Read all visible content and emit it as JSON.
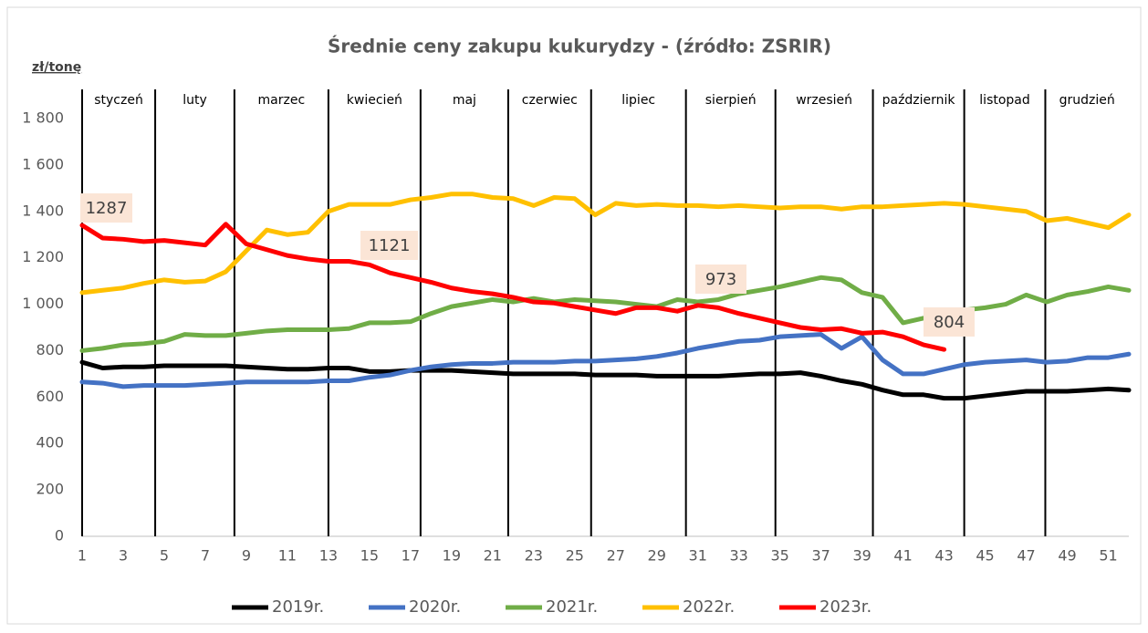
{
  "chart_data": {
    "type": "line",
    "title": "Średnie ceny zakupu kukurydzy - (źródło: ZSRIR)",
    "y_label": "zł/tonę",
    "months": [
      "styczeń",
      "luty",
      "marzec",
      "kwiecień",
      "maj",
      "czerwiec",
      "lipiec",
      "sierpień",
      "wrzesień",
      "październik",
      "listopad",
      "grudzień"
    ],
    "month_dividers": [
      1,
      4.56,
      8.42,
      13,
      17.49,
      21.76,
      25.8,
      30.42,
      34.78,
      39.53,
      43.98,
      47.93
    ],
    "x": [
      1,
      2,
      3,
      4,
      5,
      6,
      7,
      8,
      9,
      10,
      11,
      12,
      13,
      14,
      15,
      16,
      17,
      18,
      19,
      20,
      21,
      22,
      23,
      24,
      25,
      26,
      27,
      28,
      29,
      30,
      31,
      32,
      33,
      34,
      35,
      36,
      37,
      38,
      39,
      40,
      41,
      42,
      43,
      44,
      45,
      46,
      47,
      48,
      49,
      50,
      51,
      52
    ],
    "xlim": [
      1,
      52
    ],
    "xticks": [
      1,
      3,
      5,
      7,
      9,
      11,
      13,
      15,
      17,
      19,
      21,
      23,
      25,
      27,
      29,
      31,
      33,
      35,
      37,
      39,
      41,
      43,
      45,
      47,
      49,
      51
    ],
    "ylim": [
      0,
      1800
    ],
    "yticks": [
      0,
      200,
      400,
      600,
      800,
      {
        "value": 1000,
        "label": "1 000"
      },
      {
        "value": 1200,
        "label": "1 200"
      },
      {
        "value": 1400,
        "label": "1 400"
      },
      {
        "value": 1600,
        "label": "1 600"
      },
      {
        "value": 1800,
        "label": "1 800"
      }
    ],
    "series": [
      {
        "name": "2019r.",
        "color": "#000000",
        "values": [
          750,
          725,
          730,
          730,
          735,
          735,
          735,
          735,
          730,
          725,
          720,
          720,
          725,
          725,
          710,
          710,
          715,
          715,
          715,
          710,
          705,
          700,
          700,
          700,
          700,
          695,
          695,
          695,
          690,
          690,
          690,
          690,
          695,
          700,
          700,
          705,
          690,
          670,
          655,
          630,
          610,
          610,
          595,
          595,
          605,
          615,
          625,
          625,
          625,
          630,
          635,
          630
        ]
      },
      {
        "name": "2020r.",
        "color": "#4472c4",
        "values": [
          665,
          660,
          645,
          650,
          650,
          650,
          655,
          660,
          665,
          665,
          665,
          665,
          670,
          670,
          685,
          695,
          715,
          730,
          740,
          745,
          745,
          750,
          750,
          750,
          755,
          755,
          760,
          765,
          775,
          790,
          810,
          825,
          840,
          845,
          860,
          865,
          870,
          810,
          860,
          760,
          700,
          700,
          720,
          740,
          750,
          755,
          760,
          750,
          755,
          770,
          770,
          785
        ]
      },
      {
        "name": "2021r.",
        "color": "#70ad47",
        "values": [
          800,
          810,
          825,
          830,
          840,
          870,
          865,
          865,
          875,
          885,
          890,
          890,
          890,
          895,
          920,
          920,
          925,
          960,
          990,
          1005,
          1020,
          1010,
          1025,
          1010,
          1020,
          1015,
          1010,
          1000,
          990,
          1020,
          1010,
          1020,
          1045,
          1060,
          1075,
          1095,
          1115,
          1105,
          1050,
          1030,
          920,
          940,
          950,
          975,
          985,
          1000,
          1040,
          1010,
          1040,
          1055,
          1075,
          1060
        ]
      },
      {
        "name": "2022r.",
        "color": "#ffc000",
        "values": [
          1050,
          1060,
          1070,
          1090,
          1105,
          1095,
          1100,
          1140,
          1230,
          1320,
          1300,
          1310,
          1400,
          1430,
          1430,
          1430,
          1450,
          1460,
          1475,
          1475,
          1460,
          1455,
          1425,
          1460,
          1455,
          1385,
          1435,
          1425,
          1430,
          1425,
          1425,
          1420,
          1425,
          1420,
          1415,
          1420,
          1420,
          1410,
          1420,
          1420,
          1425,
          1430,
          1435,
          1430,
          1420,
          1410,
          1400,
          1360,
          1370,
          1350,
          1330,
          1385
        ]
      },
      {
        "name": "2023r.",
        "color": "#ff0000",
        "values": [
          1340,
          1285,
          1280,
          1270,
          1275,
          1265,
          1255,
          1345,
          1260,
          1235,
          1210,
          1195,
          1185,
          1185,
          1170,
          1135,
          1115,
          1095,
          1070,
          1055,
          1045,
          1030,
          1010,
          1005,
          990,
          975,
          960,
          985,
          985,
          970,
          995,
          985,
          960,
          940,
          920,
          900,
          890,
          895,
          875,
          880,
          860,
          825,
          805,
          null,
          null,
          null,
          null,
          null,
          null,
          null,
          null,
          null
        ]
      }
    ],
    "annotations": [
      "1287",
      "1121",
      "973",
      "804"
    ]
  }
}
